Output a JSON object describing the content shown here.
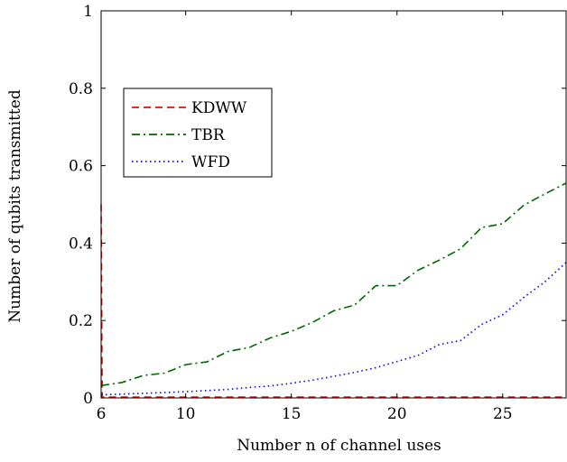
{
  "chart_data": {
    "type": "line",
    "xlabel": "Number n of channel uses",
    "ylabel": "Number of qubits transmitted",
    "xlim": [
      6,
      28
    ],
    "ylim": [
      0,
      1
    ],
    "x_ticks": [
      "6",
      "10",
      "15",
      "20",
      "25"
    ],
    "y_ticks": [
      "0",
      "0.2",
      "0.4",
      "0.6",
      "0.8",
      "1"
    ],
    "legend_position": "upper-left",
    "series": [
      {
        "name": "KDWW",
        "color": "#ff0000",
        "style": "dashed",
        "x": [
          6,
          6.05,
          7,
          8,
          9,
          10,
          11,
          12,
          13,
          14,
          15,
          16,
          17,
          18,
          19,
          20,
          21,
          22,
          23,
          24,
          25,
          26,
          27,
          28
        ],
        "y": [
          0.5,
          0.002,
          0.002,
          0.002,
          0.002,
          0.002,
          0.002,
          0.002,
          0.002,
          0.002,
          0.002,
          0.002,
          0.002,
          0.002,
          0.002,
          0.002,
          0.002,
          0.002,
          0.002,
          0.002,
          0.002,
          0.002,
          0.002,
          0.002
        ]
      },
      {
        "name": "TBR",
        "color": "#006400",
        "style": "dashdot",
        "x": [
          6,
          7,
          8,
          9,
          10,
          11,
          12,
          13,
          14,
          15,
          16,
          17,
          18,
          19,
          20,
          21,
          22,
          23,
          24,
          25,
          26,
          27,
          28
        ],
        "y": [
          0.032,
          0.04,
          0.058,
          0.064,
          0.086,
          0.093,
          0.12,
          0.13,
          0.155,
          0.172,
          0.195,
          0.225,
          0.24,
          0.29,
          0.29,
          0.33,
          0.356,
          0.385,
          0.44,
          0.45,
          0.498,
          0.527,
          0.555
        ]
      },
      {
        "name": "WFD",
        "color": "#0000ff",
        "style": "dotted",
        "x": [
          6,
          7,
          8,
          9,
          10,
          11,
          12,
          13,
          14,
          15,
          16,
          17,
          18,
          19,
          20,
          21,
          22,
          23,
          24,
          25,
          26,
          27,
          28
        ],
        "y": [
          0.008,
          0.01,
          0.012,
          0.014,
          0.016,
          0.019,
          0.022,
          0.027,
          0.031,
          0.038,
          0.046,
          0.056,
          0.066,
          0.078,
          0.094,
          0.11,
          0.138,
          0.148,
          0.19,
          0.215,
          0.26,
          0.3,
          0.35
        ]
      }
    ]
  }
}
